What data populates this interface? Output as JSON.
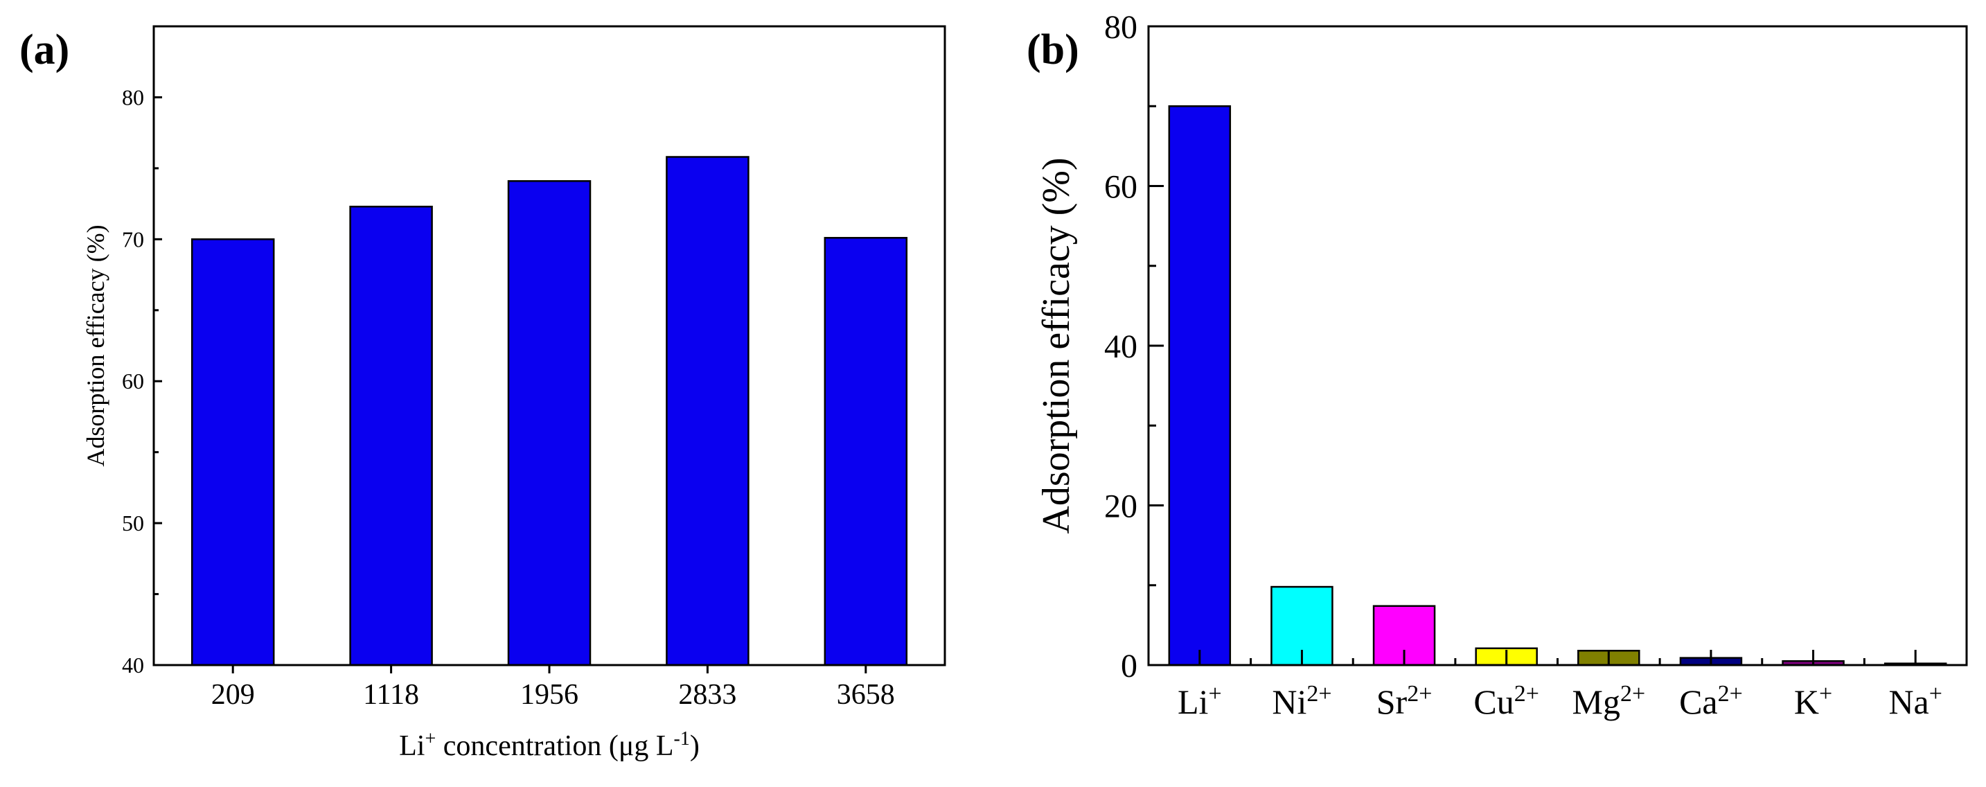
{
  "chart_data": [
    {
      "panel_label": "(a)",
      "type": "bar",
      "categories": [
        "209",
        "1118",
        "1956",
        "2833",
        "3658"
      ],
      "values": [
        70.0,
        72.3,
        74.1,
        75.8,
        70.1
      ],
      "ylim": [
        40,
        85
      ],
      "yticks": [
        "40",
        "50",
        "60",
        "70",
        "80"
      ],
      "ylabel": "Adsorption efficacy (%)",
      "xlabel": {
        "base": "Li",
        "sup": "+",
        "middle": " concentration (μg L",
        "sup2": "-1",
        "end": ")"
      },
      "bar_color": "#0a00f0"
    },
    {
      "panel_label": "(b)",
      "type": "bar",
      "categories": [
        {
          "base": "Li",
          "sup": "+"
        },
        {
          "base": "Ni",
          "sup": "2+"
        },
        {
          "base": "Sr",
          "sup": "2+"
        },
        {
          "base": "Cu",
          "sup": "2+"
        },
        {
          "base": "Mg",
          "sup": "2+"
        },
        {
          "base": "Ca",
          "sup": "2+"
        },
        {
          "base": "K",
          "sup": "+"
        },
        {
          "base": "Na",
          "sup": "+"
        }
      ],
      "values": [
        70.0,
        9.8,
        7.4,
        2.1,
        1.8,
        0.9,
        0.5,
        0.2
      ],
      "ylim": [
        0,
        80
      ],
      "yticks": [
        "0",
        "20",
        "40",
        "60",
        "80"
      ],
      "ylabel": "Adsorption efficacy (%)",
      "bar_colors": [
        "#0a00f0",
        "#00ffff",
        "#ff00ff",
        "#ffff00",
        "#808000",
        "#000080",
        "#800080",
        "#ffffff"
      ]
    }
  ]
}
